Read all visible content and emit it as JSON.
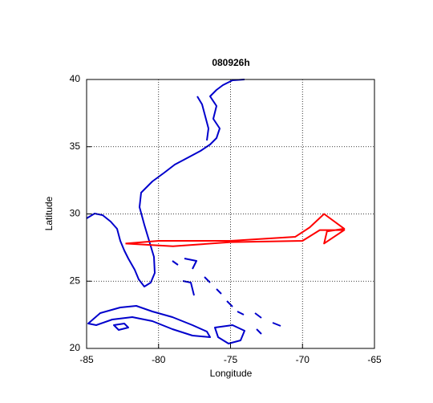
{
  "chart_data": {
    "type": "line",
    "title": "080926h",
    "xlabel": "Longitude",
    "ylabel": "Latitude",
    "xlim": [
      -85,
      -65
    ],
    "ylim": [
      20,
      40
    ],
    "xticks": [
      -85,
      -80,
      -75,
      -70,
      -65
    ],
    "yticks": [
      20,
      25,
      30,
      35,
      40
    ],
    "grid": true,
    "series": [
      {
        "color": "#ff0000",
        "x": [
          -82.3,
          -80,
          -75,
          -70.5,
          -69.5,
          -68.5,
          -67.1,
          -68.3,
          -68.5,
          -67.1,
          -68.8,
          -70,
          -75,
          -79,
          -82.3
        ],
        "values": [
          27.8,
          28.0,
          28.0,
          28.3,
          29.0,
          30.0,
          28.9,
          28.7,
          27.8,
          28.8,
          28.8,
          28.0,
          27.9,
          27.6,
          27.8
        ]
      }
    ]
  }
}
